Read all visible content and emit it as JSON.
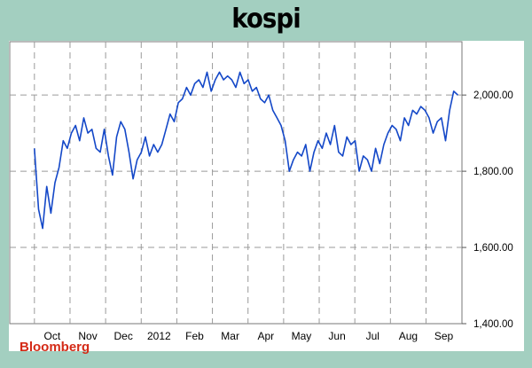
{
  "title": "kospi",
  "source": "Bloomberg",
  "colors": {
    "background": "#a3cfc0",
    "plot": "#ffffff",
    "line": "#1448c8",
    "grid": "#9a9a9a",
    "source": "#d42a16"
  },
  "chart_data": {
    "type": "line",
    "title": "kospi",
    "xlabel": "",
    "ylabel": "",
    "x_tick_labels": [
      "Oct",
      "Nov",
      "Dec",
      "2012",
      "Feb",
      "Mar",
      "Apr",
      "May",
      "Jun",
      "Jul",
      "Aug",
      "Sep"
    ],
    "y_ticks": [
      "1,400.00",
      "1,600.00",
      "1,800.00",
      "2,000.00"
    ],
    "ylim": [
      1400,
      2140
    ],
    "grid": true,
    "y_axis_side": "right",
    "x_unit": "weeks since the start of the first dated month shown",
    "series": [
      {
        "name": "",
        "x": [
          0,
          0.5,
          1,
          1.5,
          2,
          2.5,
          3,
          3.5,
          4,
          4.5,
          5,
          5.5,
          6,
          6.5,
          7,
          7.5,
          8,
          8.5,
          9,
          9.5,
          10,
          10.5,
          11,
          11.5,
          12,
          12.5,
          13,
          13.5,
          14,
          14.5,
          15,
          15.5,
          16,
          16.5,
          17,
          17.5,
          18,
          18.5,
          19,
          19.5,
          20,
          20.5,
          21,
          21.5,
          22,
          22.5,
          23,
          23.5,
          24,
          24.5,
          25,
          25.5,
          26,
          26.5,
          27,
          27.5,
          28,
          28.5,
          29,
          29.5,
          30,
          30.5,
          31,
          31.5,
          32,
          32.5,
          33,
          33.5,
          34,
          34.5,
          35,
          35.5,
          36,
          36.5,
          37,
          37.5,
          38,
          38.5,
          39,
          39.5,
          40,
          40.5,
          41,
          41.5,
          42,
          42.5,
          43,
          43.5,
          44,
          44.5,
          45,
          45.5,
          46,
          46.5,
          47,
          47.5,
          48,
          48.5,
          49,
          49.5,
          50,
          50.5,
          51,
          51.5
        ],
        "values": [
          1860,
          1700,
          1650,
          1760,
          1690,
          1770,
          1810,
          1880,
          1860,
          1900,
          1920,
          1880,
          1940,
          1900,
          1910,
          1860,
          1850,
          1910,
          1840,
          1790,
          1890,
          1930,
          1910,
          1850,
          1780,
          1830,
          1850,
          1890,
          1840,
          1870,
          1850,
          1870,
          1910,
          1950,
          1930,
          1980,
          1990,
          2020,
          2000,
          2030,
          2040,
          2020,
          2060,
          2010,
          2040,
          2060,
          2040,
          2050,
          2040,
          2020,
          2060,
          2030,
          2040,
          2010,
          2020,
          1990,
          1980,
          2000,
          1960,
          1940,
          1920,
          1880,
          1800,
          1830,
          1850,
          1840,
          1870,
          1800,
          1850,
          1880,
          1860,
          1900,
          1870,
          1920,
          1850,
          1840,
          1890,
          1870,
          1880,
          1800,
          1840,
          1830,
          1800,
          1860,
          1820,
          1870,
          1900,
          1920,
          1910,
          1880,
          1940,
          1920,
          1960,
          1950,
          1970,
          1960,
          1940,
          1900,
          1930,
          1940,
          1880,
          1960,
          2010,
          2000
        ]
      }
    ]
  }
}
